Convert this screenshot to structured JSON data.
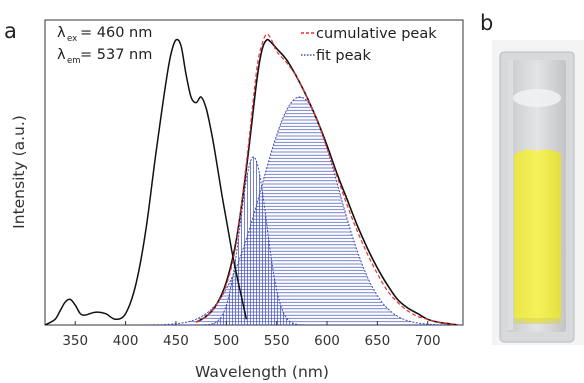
{
  "panels": {
    "a": "a",
    "b": "b"
  },
  "annotations": {
    "ex_symbol": "λ",
    "ex_sub": "ex",
    "ex_value": "= 460 nm",
    "em_symbol": "λ",
    "em_sub": "em",
    "em_value": "= 537 nm"
  },
  "legend": {
    "items": [
      {
        "label": "cumulative peak",
        "color": "#e8302f",
        "style": "dashed"
      },
      {
        "label": "fit peak",
        "color": "#3d4cb3",
        "style": "dotted"
      }
    ],
    "placement": "top-right"
  },
  "colors": {
    "curve": "#111111",
    "cumulative": "#e8302f",
    "fit": "#3d4cb3",
    "fit_fill": "#3d4cb3"
  },
  "photo": {
    "description_icon": "cuvette-with-yellow-powder-photo"
  },
  "chart_data": {
    "type": "line",
    "title": "",
    "xlabel": "Wavelength (nm)",
    "ylabel": "Intensity (a.u.)",
    "xlim": [
      320,
      735
    ],
    "ylim": [
      0,
      1.0
    ],
    "x_ticks": [
      350,
      400,
      450,
      500,
      550,
      600,
      650,
      700
    ],
    "y_ticks_shown": false,
    "grid": false,
    "series": [
      {
        "name": "",
        "x": [
          320,
          330,
          335,
          340,
          345,
          350,
          355,
          360,
          370,
          380,
          390,
          400,
          410,
          420,
          430,
          440,
          445,
          450,
          455,
          460,
          465,
          470,
          475,
          480,
          485,
          490,
          495,
          500,
          505,
          510,
          515,
          520
        ],
        "values": [
          0,
          0.02,
          0.05,
          0.08,
          0.09,
          0.07,
          0.04,
          0.035,
          0.045,
          0.04,
          0.02,
          0.04,
          0.14,
          0.33,
          0.6,
          0.85,
          0.95,
          1.0,
          0.98,
          0.88,
          0.8,
          0.78,
          0.8,
          0.76,
          0.68,
          0.58,
          0.47,
          0.37,
          0.27,
          0.18,
          0.1,
          0.02
        ]
      },
      {
        "name": "",
        "x": [
          470,
          480,
          490,
          500,
          510,
          520,
          530,
          535,
          540,
          545,
          550,
          560,
          570,
          580,
          590,
          600,
          610,
          620,
          630,
          640,
          650,
          660,
          670,
          680,
          690,
          700,
          710,
          720,
          730
        ],
        "values": [
          0.01,
          0.03,
          0.07,
          0.15,
          0.3,
          0.55,
          0.85,
          0.96,
          1.0,
          0.99,
          0.97,
          0.93,
          0.87,
          0.8,
          0.72,
          0.63,
          0.53,
          0.44,
          0.35,
          0.27,
          0.2,
          0.14,
          0.09,
          0.06,
          0.04,
          0.02,
          0.01,
          0.005,
          0.0
        ]
      },
      {
        "name": "cumulative peak",
        "x": [
          470,
          480,
          490,
          500,
          510,
          520,
          530,
          535,
          540,
          545,
          550,
          560,
          570,
          580,
          590,
          600,
          610,
          620,
          630,
          640,
          650,
          660,
          670,
          680,
          690,
          700,
          710,
          720,
          730
        ],
        "values": [
          0.01,
          0.03,
          0.07,
          0.14,
          0.29,
          0.57,
          0.89,
          0.98,
          1.02,
          1.0,
          0.96,
          0.92,
          0.87,
          0.8,
          0.72,
          0.62,
          0.52,
          0.42,
          0.33,
          0.25,
          0.18,
          0.12,
          0.08,
          0.05,
          0.03,
          0.02,
          0.01,
          0.005,
          0.0
        ]
      },
      {
        "name": "fit peak",
        "peaks": [
          {
            "center": 527,
            "sigma": 13,
            "amplitude": 0.59
          },
          {
            "center": 573,
            "sigma": 38,
            "amplitude": 0.8
          }
        ]
      }
    ]
  }
}
